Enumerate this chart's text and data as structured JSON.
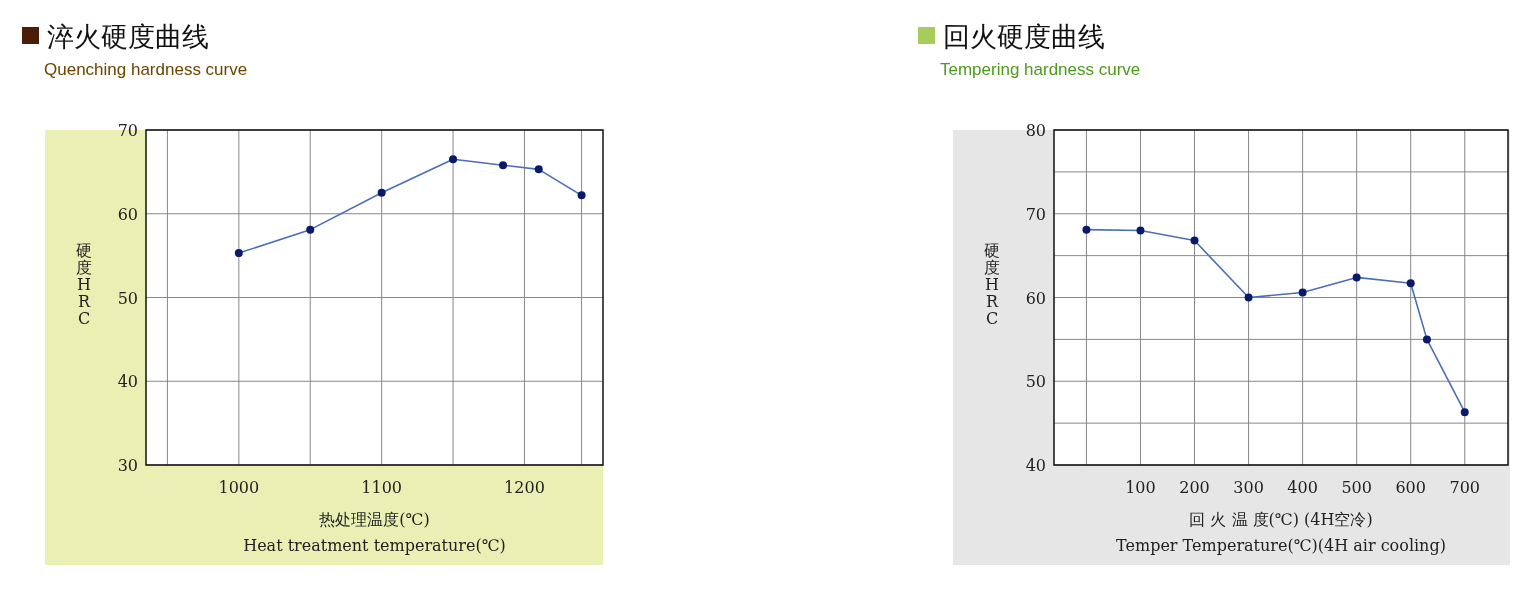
{
  "chart_data": [
    {
      "type": "line",
      "title": "淬火硬度曲线",
      "subtitle": "Quenching hardness curve",
      "xlabel": "热处理温度(℃)\nHeat treatment temperature(℃)",
      "ylabel": "硬度HRC",
      "x": [
        1000,
        1050,
        1100,
        1150,
        1185,
        1210,
        1240
      ],
      "series": [
        {
          "color": "#4a6fb5",
          "values": [
            55.3,
            58.1,
            62.5,
            66.5,
            65.8,
            65.3,
            62.2
          ]
        }
      ],
      "xlim": [
        935,
        1255
      ],
      "xticks": [
        {
          "value": 950,
          "label": null
        },
        1000,
        {
          "value": 1050,
          "label": null
        },
        1100,
        {
          "value": 1150,
          "label": null
        },
        1200,
        {
          "value": 1240,
          "label": null
        }
      ],
      "ylim": [
        30,
        70
      ],
      "yticks": [
        30,
        40,
        50,
        60,
        70
      ],
      "grid": true,
      "marker": "circle",
      "line_style": "solid"
    },
    {
      "type": "line",
      "title": "回火硬度曲线",
      "subtitle": "Tempering hardness curve",
      "xlabel": "回 火 温 度(℃) (4H空冷)\nTemper Temperature(℃)(4H air cooling)",
      "ylabel": "硬度HRC",
      "x": [
        0,
        100,
        200,
        300,
        400,
        500,
        600,
        630,
        700
      ],
      "series": [
        {
          "color": "#4a6fb5",
          "values": [
            68.1,
            68.0,
            66.8,
            60.0,
            60.6,
            62.4,
            61.7,
            55.0,
            46.3
          ]
        }
      ],
      "xlim": [
        -60,
        780
      ],
      "xticks": [
        {
          "value": 0,
          "label": null
        },
        100,
        200,
        300,
        400,
        500,
        600,
        700
      ],
      "ylim": [
        40,
        80
      ],
      "yticks": [
        40,
        {
          "value": 45,
          "label": null
        },
        50,
        {
          "value": 55,
          "label": null
        },
        60,
        {
          "value": 65,
          "label": null
        },
        70,
        {
          "value": 75,
          "label": null
        },
        80
      ],
      "grid": true,
      "marker": "circle",
      "line_style": "solid"
    }
  ]
}
